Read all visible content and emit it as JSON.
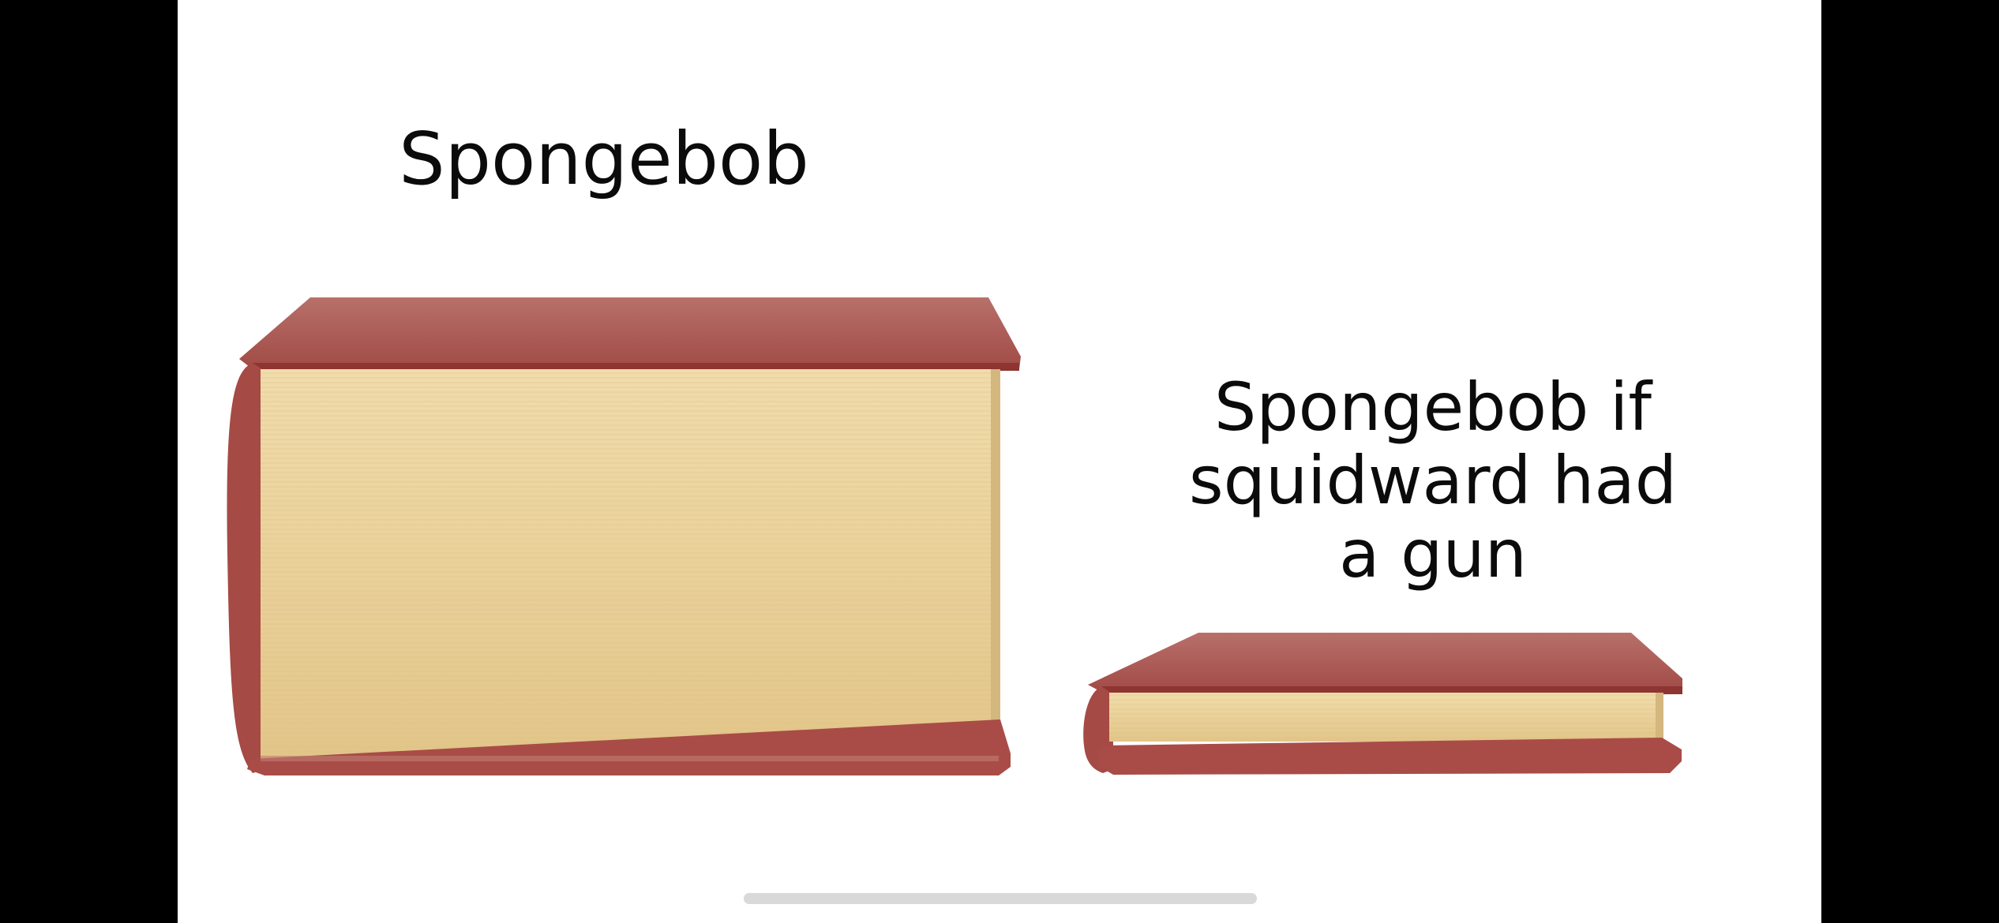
{
  "meme": {
    "caption_thick_book": "Spongebob",
    "caption_thin_book_lines": [
      "Spongebob if",
      "squidward had",
      "a gun"
    ]
  },
  "colors": {
    "background": "#000000",
    "panel": "#ffffff",
    "cover": "#9b3f3c",
    "cover_top": "#b0605a",
    "pages": "#e8cf98",
    "home_indicator": "#d9d9d9"
  },
  "icons": {
    "thick_book": "thick-book-icon",
    "thin_book": "thin-book-icon"
  }
}
